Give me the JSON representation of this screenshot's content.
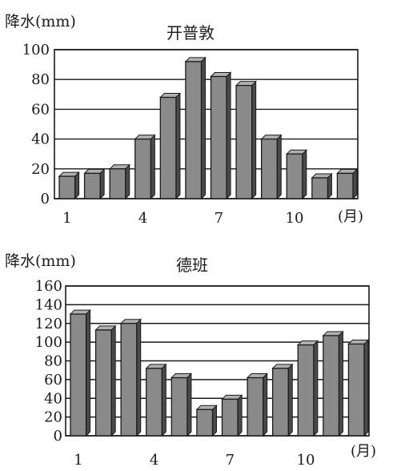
{
  "chart_data": [
    {
      "type": "bar",
      "title": "开普敦",
      "ylabel": "降水(mm)",
      "xlabel": "(月)",
      "ylim": [
        0,
        100
      ],
      "yticks": [
        0,
        20,
        40,
        60,
        80,
        100
      ],
      "xtick_labels": [
        "1",
        "4",
        "7",
        "10"
      ],
      "categories": [
        1,
        2,
        3,
        4,
        5,
        6,
        7,
        8,
        9,
        10,
        11,
        12
      ],
      "values": [
        15,
        17,
        20,
        40,
        68,
        92,
        82,
        76,
        40,
        30,
        14,
        17
      ],
      "grid": true
    },
    {
      "type": "bar",
      "title": "德班",
      "ylabel": "降水(mm)",
      "xlabel": "(月)",
      "ylim": [
        0,
        160
      ],
      "yticks": [
        0,
        20,
        40,
        60,
        80,
        100,
        120,
        140,
        160
      ],
      "xtick_labels": [
        "1",
        "4",
        "7",
        "10"
      ],
      "categories": [
        1,
        2,
        3,
        4,
        5,
        6,
        7,
        8,
        9,
        10,
        11,
        12
      ],
      "values": [
        130,
        113,
        120,
        72,
        62,
        28,
        39,
        62,
        72,
        97,
        107,
        98
      ],
      "grid": true
    }
  ],
  "colors": {
    "bar": "#8a8a8a",
    "bar_edge": "#1a1a1a",
    "grid": "#1a1a1a"
  }
}
